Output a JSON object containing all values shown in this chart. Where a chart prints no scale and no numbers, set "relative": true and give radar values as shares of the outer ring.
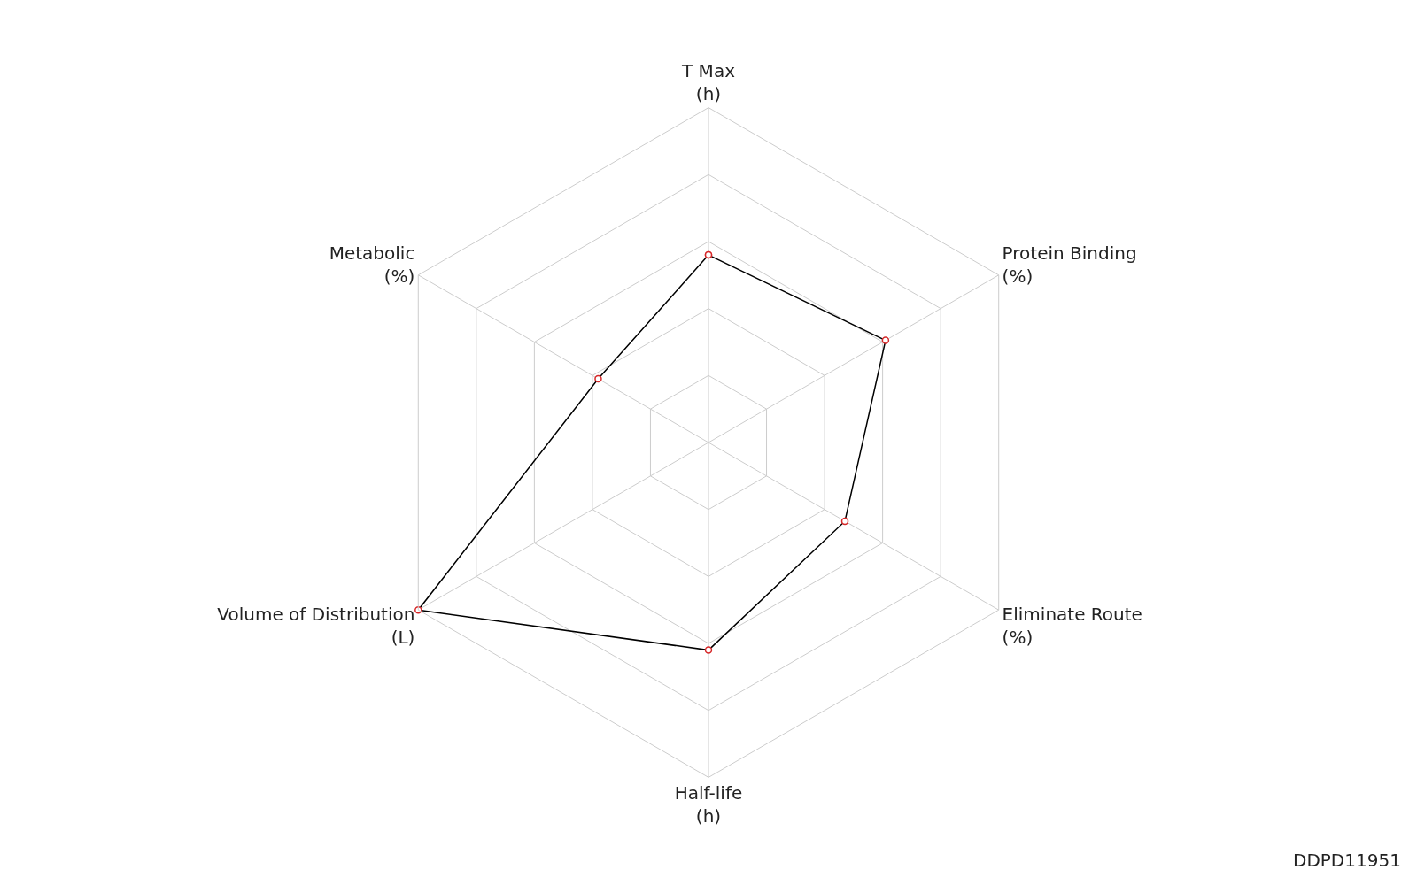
{
  "chart_data": {
    "type": "radar",
    "relative": true,
    "categories": [
      "T Max\n(h)",
      "Protein Binding\n(%)",
      "Eliminate Route\n(%)",
      "Half-life\n(h)",
      "Volume of Distribution\n(L)",
      "Metabolic\n(%)"
    ],
    "series": [
      {
        "color": "#000000",
        "values": [
          0.56,
          0.61,
          0.47,
          0.62,
          1.0,
          0.38
        ]
      }
    ],
    "marker": "circle",
    "grid": true,
    "annotations": [
      "DDPD11951"
    ]
  }
}
